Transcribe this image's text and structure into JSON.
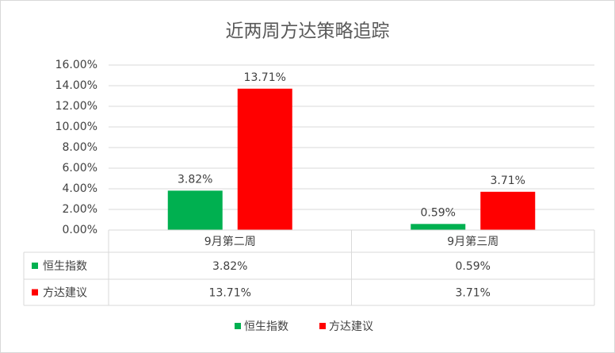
{
  "chart_data": {
    "type": "bar",
    "title": "近两周方达策略追踪",
    "categories": [
      "9月第二周",
      "9月第三周"
    ],
    "series": [
      {
        "name": "恒生指数",
        "color": "#00b050",
        "values": [
          3.82,
          0.59
        ],
        "value_labels": [
          "3.82%",
          "0.59%"
        ]
      },
      {
        "name": "方达建议",
        "color": "#ff0000",
        "values": [
          13.71,
          3.71
        ],
        "value_labels": [
          "13.71%",
          "3.71%"
        ]
      }
    ],
    "ylim": [
      0,
      16
    ],
    "yticks": [
      {
        "value": 0,
        "label": "0.00%"
      },
      {
        "value": 2,
        "label": "2.00%"
      },
      {
        "value": 4,
        "label": "4.00%"
      },
      {
        "value": 6,
        "label": "6.00%"
      },
      {
        "value": 8,
        "label": "8.00%"
      },
      {
        "value": 10,
        "label": "10.00%"
      },
      {
        "value": 12,
        "label": "12.00%"
      },
      {
        "value": 14,
        "label": "14.00%"
      },
      {
        "value": 16,
        "label": "16.00%"
      }
    ],
    "grid": true,
    "legend": "bottom",
    "data_table": true
  }
}
